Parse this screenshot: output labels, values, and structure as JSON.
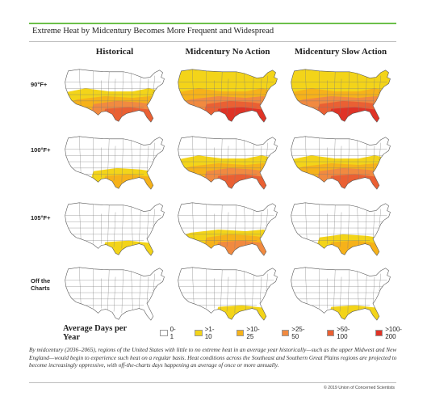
{
  "title": "Extreme Heat by Midcentury Becomes More Frequent and Widespread",
  "columns": [
    "Historical",
    "Midcentury No Action",
    "Midcentury Slow Action"
  ],
  "rows": [
    {
      "label_lines": [
        "90°F+"
      ]
    },
    {
      "label_lines": [
        "100°F+"
      ]
    },
    {
      "label_lines": [
        "105°F+"
      ]
    },
    {
      "label_lines": [
        "Off the",
        "Charts"
      ]
    }
  ],
  "legend": {
    "title": "Average Days per Year",
    "items": [
      {
        "label": "0-1",
        "color": "#ffffff"
      },
      {
        "label": ">1-10",
        "color": "#f3d419"
      },
      {
        "label": ">10-25",
        "color": "#f6b21a"
      },
      {
        "label": ">25-50",
        "color": "#f18a40"
      },
      {
        "label": ">50-100",
        "color": "#ea6033"
      },
      {
        "label": ">100-200",
        "color": "#df3326"
      }
    ]
  },
  "maps": [
    [
      {
        "level": 4
      },
      {
        "level": 5
      },
      {
        "level": 5
      }
    ],
    [
      {
        "level": 2
      },
      {
        "level": 4
      },
      {
        "level": 4
      }
    ],
    [
      {
        "level": 1
      },
      {
        "level": 3
      },
      {
        "level": 2
      }
    ],
    [
      {
        "level": 0
      },
      {
        "level": 1
      },
      {
        "level": 1
      }
    ]
  ],
  "caption": "By midcentury (2036–2065), regions of the United States with little to no extreme heat in an average year historically—such as the upper Midwest and New England—would begin to experience such heat on a regular basis. Heat conditions across the Southeast and Southern Great Plains regions are projected to become increasingly oppressive, with off-the-charts days happening an average of once or more annually.",
  "copyright": "© 2019 Union of Concerned Scientists"
}
